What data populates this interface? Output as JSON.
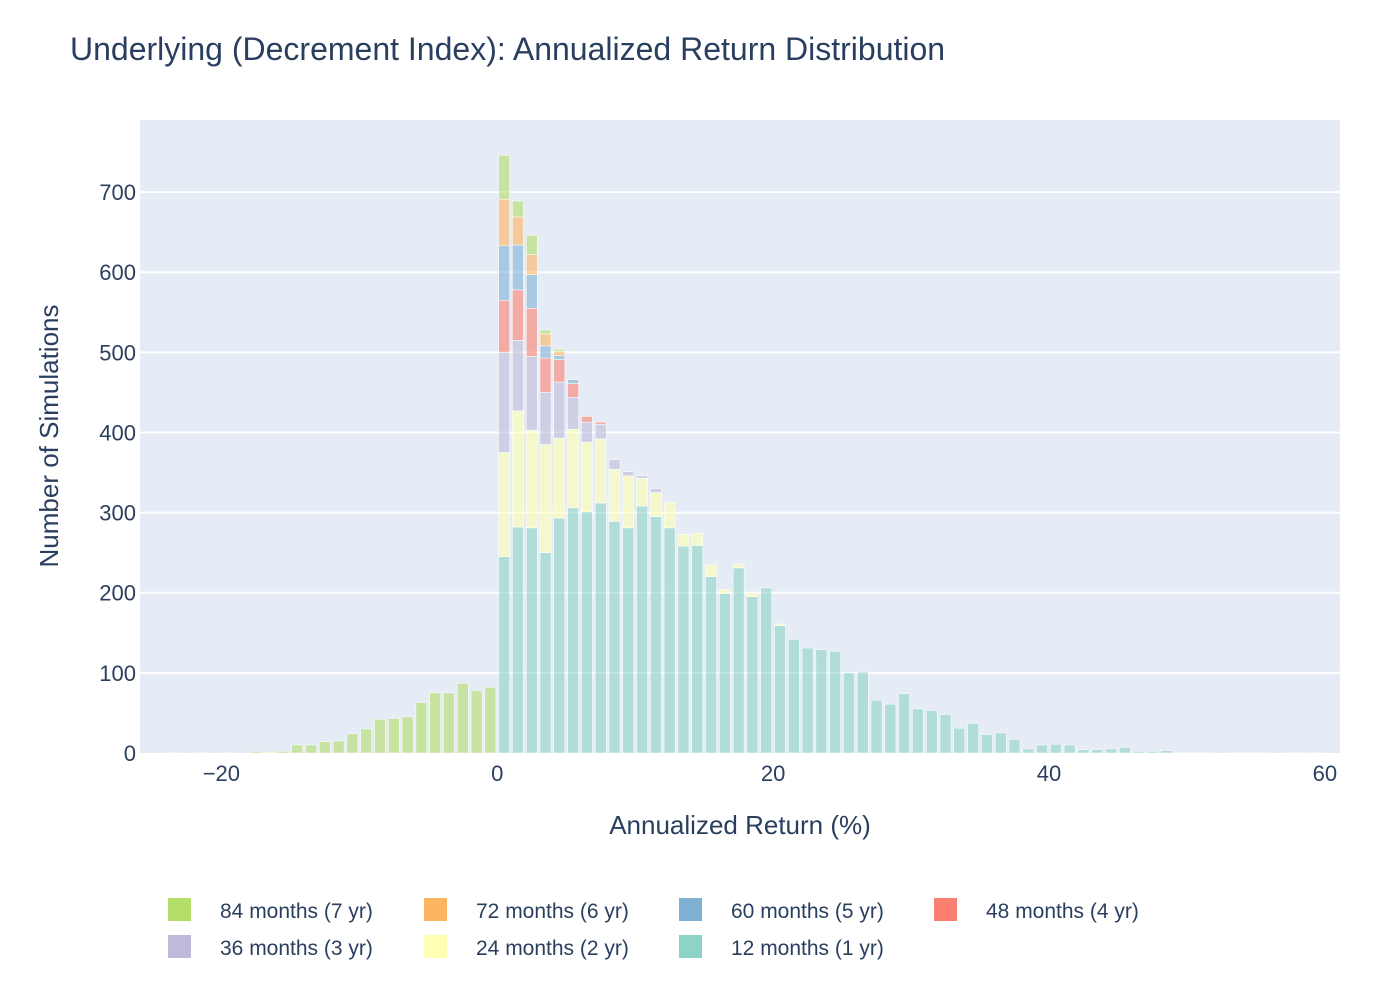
{
  "chart_data": {
    "type": "bar",
    "barmode": "stack",
    "title": "Underlying (Decrement Index): Annualized Return Distribution",
    "xlabel": "Annualized Return (%)",
    "ylabel": "Number of Simulations",
    "xlim": [
      -25.9,
      61.1
    ],
    "ylim": [
      0,
      790
    ],
    "x_ticks": [
      -20,
      0,
      20,
      40,
      60
    ],
    "y_ticks": [
      0,
      100,
      200,
      300,
      400,
      500,
      600,
      700
    ],
    "x_tick_labels": [
      "−20",
      "0",
      "20",
      "40",
      "60"
    ],
    "y_tick_labels": [
      "0",
      "100",
      "200",
      "300",
      "400",
      "500",
      "600",
      "700"
    ],
    "grid": true,
    "bin_width": 1,
    "legend_position": "bottom",
    "stack_order": [
      "12m",
      "24m",
      "36m",
      "48m",
      "60m",
      "72m",
      "84m"
    ],
    "series": [
      {
        "key": "84m",
        "name": "84 months (7 yr)",
        "color": "#b3de69",
        "bins": [
          [
            -24,
            1
          ],
          [
            -22,
            1
          ],
          [
            -20,
            1
          ],
          [
            -18,
            2
          ],
          [
            -17,
            1
          ],
          [
            -16,
            2
          ],
          [
            -15,
            10
          ],
          [
            -14,
            10
          ],
          [
            -13,
            14
          ],
          [
            -12,
            15
          ],
          [
            -11,
            24
          ],
          [
            -10,
            30
          ],
          [
            -9,
            42
          ],
          [
            -8,
            43
          ],
          [
            -7,
            45
          ],
          [
            -6,
            63
          ],
          [
            -5,
            75
          ],
          [
            -4,
            75
          ],
          [
            -3,
            87
          ],
          [
            -2,
            78
          ],
          [
            -1,
            82
          ],
          [
            0,
            55
          ],
          [
            1,
            20
          ],
          [
            2,
            24
          ],
          [
            3,
            5
          ],
          [
            4,
            3
          ]
        ]
      },
      {
        "key": "72m",
        "name": "72 months (6 yr)",
        "color": "#fdb462",
        "bins": [
          [
            0,
            58
          ],
          [
            1,
            35
          ],
          [
            2,
            25
          ],
          [
            3,
            15
          ],
          [
            4,
            5
          ]
        ]
      },
      {
        "key": "60m",
        "name": "60 months (5 yr)",
        "color": "#80b1d3",
        "bins": [
          [
            0,
            68
          ],
          [
            1,
            56
          ],
          [
            2,
            42
          ],
          [
            3,
            15
          ],
          [
            4,
            5
          ],
          [
            5,
            5
          ]
        ]
      },
      {
        "key": "48m",
        "name": "48 months (4 yr)",
        "color": "#fb8072",
        "bins": [
          [
            0,
            65
          ],
          [
            1,
            63
          ],
          [
            2,
            60
          ],
          [
            3,
            43
          ],
          [
            4,
            28
          ],
          [
            5,
            17
          ],
          [
            6,
            7
          ],
          [
            7,
            3
          ]
        ]
      },
      {
        "key": "36m",
        "name": "36 months (3 yr)",
        "color": "#bebada",
        "bins": [
          [
            0,
            125
          ],
          [
            1,
            88
          ],
          [
            2,
            92
          ],
          [
            3,
            65
          ],
          [
            4,
            70
          ],
          [
            5,
            40
          ],
          [
            6,
            25
          ],
          [
            7,
            18
          ],
          [
            8,
            12
          ],
          [
            9,
            5
          ],
          [
            10,
            3
          ],
          [
            11,
            5
          ]
        ]
      },
      {
        "key": "24m",
        "name": "24 months (2 yr)",
        "color": "#ffffb3",
        "bins": [
          [
            0,
            130
          ],
          [
            1,
            145
          ],
          [
            2,
            122
          ],
          [
            3,
            135
          ],
          [
            4,
            100
          ],
          [
            5,
            98
          ],
          [
            6,
            87
          ],
          [
            7,
            80
          ],
          [
            8,
            65
          ],
          [
            9,
            65
          ],
          [
            10,
            35
          ],
          [
            11,
            30
          ],
          [
            12,
            32
          ],
          [
            13,
            15
          ],
          [
            14,
            15
          ],
          [
            15,
            15
          ],
          [
            16,
            5
          ],
          [
            17,
            5
          ],
          [
            18,
            5
          ],
          [
            20,
            2
          ]
        ]
      },
      {
        "key": "12m",
        "name": "12 months (1 yr)",
        "color": "#8dd3c7",
        "bins": [
          [
            0,
            245
          ],
          [
            1,
            282
          ],
          [
            2,
            281
          ],
          [
            3,
            250
          ],
          [
            4,
            293
          ],
          [
            5,
            306
          ],
          [
            6,
            301
          ],
          [
            7,
            312
          ],
          [
            8,
            289
          ],
          [
            9,
            281
          ],
          [
            10,
            308
          ],
          [
            11,
            295
          ],
          [
            12,
            281
          ],
          [
            13,
            258
          ],
          [
            14,
            259
          ],
          [
            15,
            220
          ],
          [
            16,
            199
          ],
          [
            17,
            231
          ],
          [
            18,
            195
          ],
          [
            19,
            206
          ],
          [
            20,
            159
          ],
          [
            21,
            142
          ],
          [
            22,
            131
          ],
          [
            23,
            129
          ],
          [
            24,
            127
          ],
          [
            25,
            100
          ],
          [
            26,
            101
          ],
          [
            27,
            66
          ],
          [
            28,
            61
          ],
          [
            29,
            74
          ],
          [
            30,
            55
          ],
          [
            31,
            53
          ],
          [
            32,
            48
          ],
          [
            33,
            31
          ],
          [
            34,
            37
          ],
          [
            35,
            23
          ],
          [
            36,
            25
          ],
          [
            37,
            17
          ],
          [
            38,
            5
          ],
          [
            39,
            10
          ],
          [
            40,
            11
          ],
          [
            41,
            10
          ],
          [
            42,
            4
          ],
          [
            43,
            4
          ],
          [
            44,
            5
          ],
          [
            45,
            7
          ],
          [
            46,
            2
          ],
          [
            47,
            2
          ],
          [
            48,
            3
          ],
          [
            49,
            1
          ],
          [
            50,
            1
          ],
          [
            51,
            1
          ],
          [
            53,
            1
          ],
          [
            54,
            1
          ],
          [
            55,
            1
          ],
          [
            57,
            1
          ],
          [
            58,
            1
          ],
          [
            59,
            1
          ]
        ]
      }
    ],
    "legend_rows": [
      [
        "84m",
        "72m",
        "60m",
        "48m"
      ],
      [
        "36m",
        "24m",
        "12m"
      ]
    ]
  }
}
